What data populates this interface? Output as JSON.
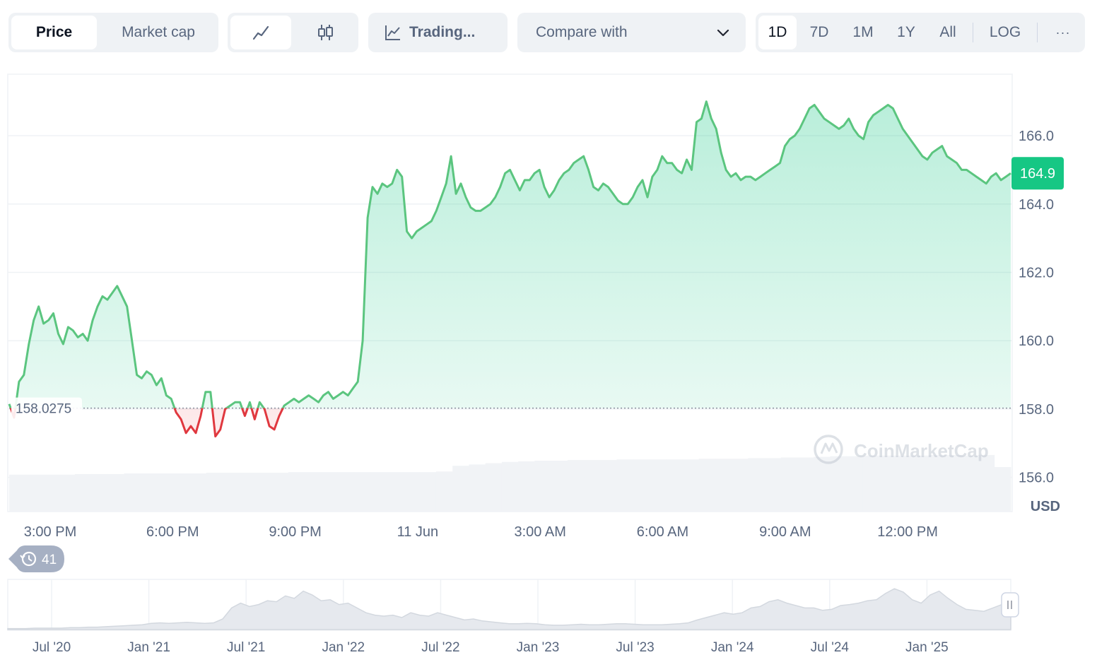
{
  "toolbar": {
    "metric_tabs": [
      {
        "label": "Price",
        "active": true
      },
      {
        "label": "Market cap",
        "active": false
      }
    ],
    "chart_style": {
      "line_icon": "line-chart-icon",
      "candle_icon": "candlestick-icon",
      "active": "line"
    },
    "tradingview": {
      "icon": "trading-view-icon",
      "label": "Trading..."
    },
    "compare": {
      "label": "Compare with",
      "icon": "chevron-down-icon"
    },
    "timeframes": [
      {
        "label": "1D",
        "active": true
      },
      {
        "label": "7D",
        "active": false
      },
      {
        "label": "1M",
        "active": false
      },
      {
        "label": "1Y",
        "active": false
      },
      {
        "label": "All",
        "active": false
      }
    ],
    "log_label": "LOG",
    "more_icon": "more-horizontal-icon",
    "more_label": "···"
  },
  "history_badge": {
    "icon": "history-icon",
    "count": "41"
  },
  "watermark": "CoinMarketCap",
  "colors": {
    "up": "#16c784",
    "up_line": "#5bc57f",
    "down": "#ea3943",
    "grid": "#eff2f5",
    "axis_text": "#58667e"
  },
  "chart_data": {
    "type": "area",
    "currency_label": "USD",
    "baseline": 158.0275,
    "baseline_label": "158.0275",
    "current_price": 164.9,
    "current_label": "164.9",
    "x_ticks": [
      "3:00 PM",
      "6:00 PM",
      "9:00 PM",
      "11 Jun",
      "3:00 AM",
      "6:00 AM",
      "9:00 AM",
      "12:00 PM"
    ],
    "y_ticks": [
      "156.0",
      "158.0",
      "160.0",
      "162.0",
      "164.0",
      "166.0"
    ],
    "ylim": [
      155.0,
      167.8
    ],
    "grid": true,
    "series": [
      {
        "values": [
          158.15,
          157.75,
          158.8,
          159.0,
          159.9,
          160.6,
          161.0,
          160.5,
          160.6,
          160.8,
          160.2,
          159.9,
          160.4,
          160.3,
          160.1,
          160.2,
          160.0,
          160.6,
          161.0,
          161.3,
          161.2,
          161.4,
          161.6,
          161.3,
          161.0,
          160.0,
          159.0,
          158.9,
          159.1,
          159.0,
          158.7,
          158.9,
          158.4,
          158.3,
          157.9,
          157.7,
          157.3,
          157.5,
          157.3,
          157.8,
          158.5,
          158.5,
          157.2,
          157.4,
          158.0,
          158.1,
          158.2,
          158.2,
          157.8,
          158.2,
          157.7,
          158.2,
          158.0,
          157.5,
          157.4,
          157.8,
          158.1,
          158.2,
          158.3,
          158.2,
          158.3,
          158.4,
          158.3,
          158.2,
          158.4,
          158.5,
          158.3,
          158.4,
          158.5,
          158.4,
          158.6,
          158.8,
          160.0,
          163.6,
          164.5,
          164.3,
          164.6,
          164.5,
          164.6,
          165.0,
          164.8,
          163.2,
          163.0,
          163.2,
          163.3,
          163.4,
          163.5,
          163.8,
          164.2,
          164.6,
          165.4,
          164.3,
          164.6,
          164.2,
          163.9,
          163.8,
          163.8,
          163.9,
          164.0,
          164.2,
          164.5,
          164.9,
          165.0,
          164.7,
          164.4,
          164.7,
          164.7,
          164.9,
          165.0,
          164.5,
          164.2,
          164.4,
          164.7,
          164.9,
          165.0,
          165.2,
          165.3,
          165.4,
          165.0,
          164.5,
          164.4,
          164.6,
          164.5,
          164.3,
          164.1,
          164.0,
          164.0,
          164.2,
          164.5,
          164.7,
          164.2,
          164.8,
          165.0,
          165.4,
          165.2,
          165.2,
          165.0,
          164.9,
          165.3,
          165.0,
          166.4,
          166.5,
          167.0,
          166.5,
          166.2,
          165.5,
          165.0,
          164.8,
          164.9,
          164.7,
          164.8,
          164.8,
          164.7,
          164.8,
          164.9,
          165.0,
          165.1,
          165.2,
          165.7,
          165.9,
          166.0,
          166.2,
          166.5,
          166.8,
          166.9,
          166.7,
          166.5,
          166.4,
          166.3,
          166.2,
          166.3,
          166.5,
          166.2,
          166.0,
          165.9,
          166.4,
          166.6,
          166.7,
          166.8,
          166.9,
          166.8,
          166.5,
          166.2,
          166.0,
          165.8,
          165.6,
          165.4,
          165.3,
          165.5,
          165.6,
          165.7,
          165.4,
          165.3,
          165.2,
          165.0,
          165.0,
          164.9,
          164.8,
          164.7,
          164.6,
          164.8,
          164.9,
          164.7,
          164.8,
          164.9
        ]
      }
    ],
    "volume": {
      "values": [
        0.58,
        0.58,
        0.58,
        0.58,
        0.59,
        0.59,
        0.59,
        0.6,
        0.6,
        0.6,
        0.6,
        0.6,
        0.61,
        0.61,
        0.61,
        0.61,
        0.61,
        0.62,
        0.62,
        0.62,
        0.62,
        0.62,
        0.62,
        0.62,
        0.62,
        0.62,
        0.63,
        0.72,
        0.74,
        0.76,
        0.78,
        0.79,
        0.8,
        0.8,
        0.81,
        0.81,
        0.81,
        0.82,
        0.82,
        0.82,
        0.82,
        0.82,
        0.83,
        0.83,
        0.83,
        0.84,
        0.84,
        0.85,
        0.85,
        0.86,
        0.87,
        0.87,
        0.88,
        0.88,
        0.88,
        0.88,
        0.89,
        0.89,
        0.88,
        0.89,
        0.7
      ]
    },
    "navigator": {
      "x_ticks": [
        "Jul '20",
        "Jan '21",
        "Jul '21",
        "Jan '22",
        "Jul '22",
        "Jan '23",
        "Jul '23",
        "Jan '24",
        "Jul '24",
        "Jan '25"
      ],
      "handle_icon": "drag-handle-icon",
      "values": [
        0.02,
        0.02,
        0.02,
        0.03,
        0.03,
        0.03,
        0.03,
        0.04,
        0.04,
        0.05,
        0.05,
        0.06,
        0.07,
        0.08,
        0.09,
        0.1,
        0.13,
        0.14,
        0.13,
        0.14,
        0.15,
        0.14,
        0.13,
        0.14,
        0.22,
        0.45,
        0.55,
        0.48,
        0.52,
        0.6,
        0.58,
        0.7,
        0.65,
        0.8,
        0.72,
        0.6,
        0.62,
        0.52,
        0.55,
        0.45,
        0.35,
        0.3,
        0.28,
        0.3,
        0.25,
        0.35,
        0.3,
        0.28,
        0.35,
        0.3,
        0.25,
        0.2,
        0.22,
        0.18,
        0.16,
        0.14,
        0.12,
        0.12,
        0.13,
        0.12,
        0.1,
        0.09,
        0.09,
        0.1,
        0.11,
        0.1,
        0.1,
        0.11,
        0.12,
        0.12,
        0.11,
        0.1,
        0.1,
        0.1,
        0.11,
        0.12,
        0.14,
        0.2,
        0.25,
        0.3,
        0.35,
        0.32,
        0.35,
        0.45,
        0.48,
        0.58,
        0.62,
        0.55,
        0.5,
        0.45,
        0.45,
        0.4,
        0.42,
        0.5,
        0.52,
        0.55,
        0.6,
        0.62,
        0.75,
        0.85,
        0.78,
        0.62,
        0.55,
        0.72,
        0.8,
        0.65,
        0.52,
        0.42,
        0.4,
        0.38,
        0.45,
        0.52,
        0.5
      ]
    }
  }
}
